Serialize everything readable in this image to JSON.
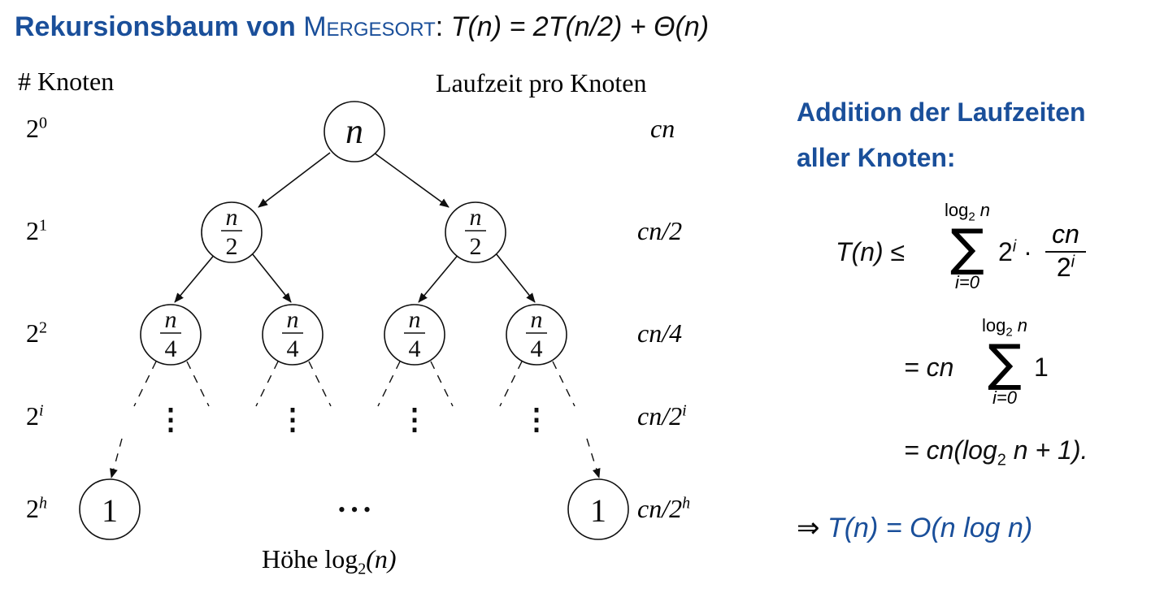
{
  "title": {
    "bold": "Rekursionsbaum von",
    "smallcaps": "Mergesort",
    "colon": ":",
    "recurrence": "T(n) = 2T(n/2) + Θ(n)"
  },
  "headers": {
    "left": "# Knoten",
    "right": "Laufzeit pro Knoten"
  },
  "levels": [
    {
      "base": "2",
      "exp": "0",
      "cost": "cn"
    },
    {
      "base": "2",
      "exp": "1",
      "cost": "cn/2"
    },
    {
      "base": "2",
      "exp": "2",
      "cost": "cn/4"
    },
    {
      "base": "2",
      "exp": "i",
      "cost_base": "cn/2",
      "cost_exp": "i"
    },
    {
      "base": "2",
      "exp": "h",
      "cost_base": "cn/2",
      "cost_exp": "h"
    }
  ],
  "nodes": {
    "root": "n",
    "half_num": "n",
    "half_den": "2",
    "quarter_num": "n",
    "quarter_den": "4",
    "leaf": "1",
    "ellipsis_dots": "⋮",
    "ellipsis_mid": "• • •"
  },
  "height_label": {
    "prefix": "Höhe log",
    "sub": "2",
    "suffix": "(n)"
  },
  "side": {
    "title_line1": "Addition der Laufzeiten",
    "title_line2": "aller Knoten:"
  },
  "equations": {
    "lhs": "T(n) ≤",
    "sum_top_log": "log",
    "sum_top_sub": "2",
    "sum_top_n": "n",
    "sum_bottom": "i=0",
    "term1_base": "2",
    "term1_exp": "i",
    "dot": "·",
    "frac_num": "cn",
    "frac_den_base": "2",
    "frac_den_exp": "i",
    "eq2_prefix": "= cn",
    "eq2_term": "1",
    "eq3": "= cn(log",
    "eq3_sub": "2",
    "eq3_rest": "n + 1)."
  },
  "conclusion": {
    "arrow": "⇒",
    "text": "T(n) = O(n log n)"
  },
  "colors": {
    "accent": "#1a4f9a",
    "text": "#0f0f0f"
  }
}
